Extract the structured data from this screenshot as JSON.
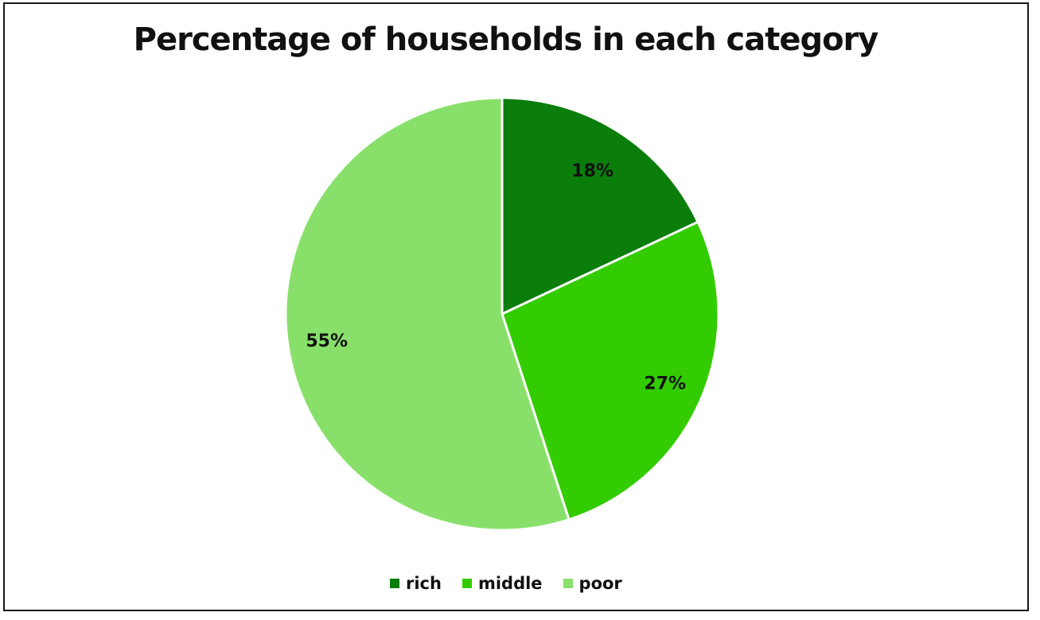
{
  "chart_data": {
    "type": "pie",
    "title": "Percentage of households in each category",
    "categories": [
      "rich",
      "middle",
      "poor"
    ],
    "values": [
      18,
      27,
      55
    ],
    "labels": [
      "18%",
      "27%",
      "55%"
    ],
    "colors": [
      "#0a7d0a",
      "#33cc00",
      "#88e06a"
    ],
    "legend_position": "bottom"
  }
}
